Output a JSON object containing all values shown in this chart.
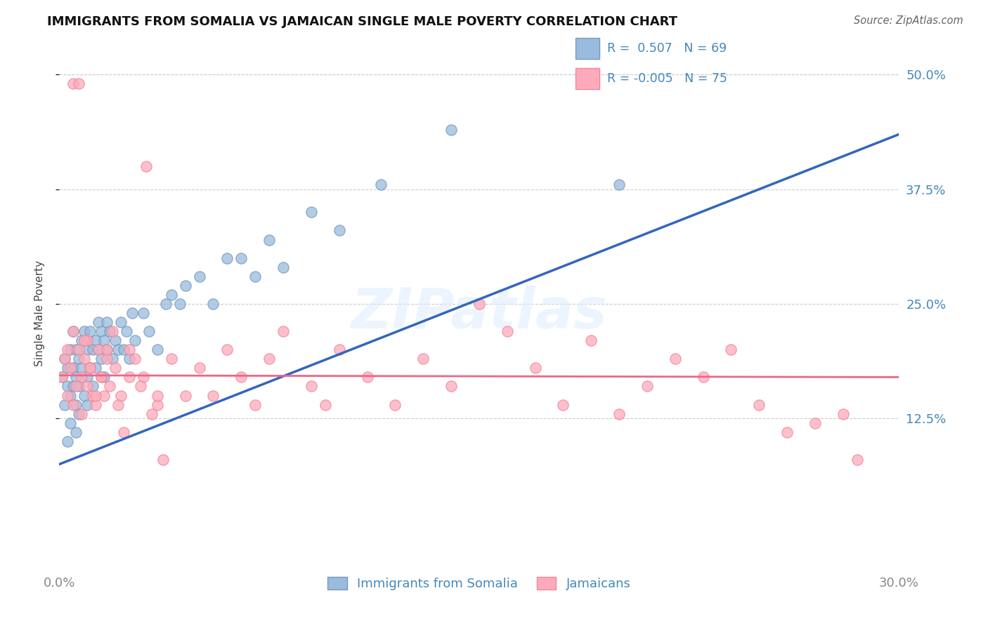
{
  "title": "IMMIGRANTS FROM SOMALIA VS JAMAICAN SINGLE MALE POVERTY CORRELATION CHART",
  "source": "Source: ZipAtlas.com",
  "ylabel": "Single Male Poverty",
  "xlim": [
    0.0,
    0.3
  ],
  "ylim": [
    -0.04,
    0.52
  ],
  "plot_ylim": [
    -0.04,
    0.52
  ],
  "xtick_positions": [
    0.0,
    0.3
  ],
  "xtick_labels": [
    "0.0%",
    "30.0%"
  ],
  "ytick_values": [
    0.125,
    0.25,
    0.375,
    0.5
  ],
  "ytick_labels": [
    "12.5%",
    "25.0%",
    "37.5%",
    "50.0%"
  ],
  "blue_color": "#99BBDD",
  "blue_edge": "#7799BB",
  "pink_color": "#FFAABB",
  "pink_edge": "#EE8899",
  "trend_blue": "#3366BB",
  "trend_pink": "#EE6688",
  "legend_R_blue": "0.507",
  "legend_N_blue": "69",
  "legend_R_pink": "-0.005",
  "legend_N_pink": "75",
  "legend_label_blue": "Immigrants from Somalia",
  "legend_label_pink": "Jamaicans",
  "axis_label_color": "#4488BB",
  "watermark": "ZIPatlas",
  "blue_trend_x0": 0.0,
  "blue_trend_y0": 0.075,
  "blue_trend_x1": 0.3,
  "blue_trend_y1": 0.435,
  "pink_trend_x0": 0.0,
  "pink_trend_y0": 0.172,
  "pink_trend_x1": 0.3,
  "pink_trend_y1": 0.17,
  "blue_scatter_x": [
    0.001,
    0.002,
    0.002,
    0.003,
    0.003,
    0.003,
    0.004,
    0.004,
    0.004,
    0.005,
    0.005,
    0.005,
    0.006,
    0.006,
    0.006,
    0.006,
    0.007,
    0.007,
    0.007,
    0.008,
    0.008,
    0.009,
    0.009,
    0.01,
    0.01,
    0.01,
    0.011,
    0.011,
    0.012,
    0.012,
    0.013,
    0.013,
    0.014,
    0.014,
    0.015,
    0.015,
    0.016,
    0.016,
    0.017,
    0.017,
    0.018,
    0.019,
    0.02,
    0.021,
    0.022,
    0.023,
    0.024,
    0.025,
    0.026,
    0.027,
    0.03,
    0.032,
    0.035,
    0.038,
    0.04,
    0.043,
    0.045,
    0.05,
    0.055,
    0.06,
    0.065,
    0.07,
    0.075,
    0.08,
    0.09,
    0.1,
    0.115,
    0.14,
    0.2
  ],
  "blue_scatter_y": [
    0.17,
    0.19,
    0.14,
    0.16,
    0.18,
    0.1,
    0.2,
    0.15,
    0.12,
    0.18,
    0.16,
    0.22,
    0.2,
    0.17,
    0.14,
    0.11,
    0.19,
    0.16,
    0.13,
    0.21,
    0.18,
    0.15,
    0.22,
    0.2,
    0.17,
    0.14,
    0.22,
    0.18,
    0.2,
    0.16,
    0.21,
    0.18,
    0.2,
    0.23,
    0.22,
    0.19,
    0.17,
    0.21,
    0.2,
    0.23,
    0.22,
    0.19,
    0.21,
    0.2,
    0.23,
    0.2,
    0.22,
    0.19,
    0.24,
    0.21,
    0.24,
    0.22,
    0.2,
    0.25,
    0.26,
    0.25,
    0.27,
    0.28,
    0.25,
    0.3,
    0.3,
    0.28,
    0.32,
    0.29,
    0.35,
    0.33,
    0.38,
    0.44,
    0.38
  ],
  "pink_scatter_x": [
    0.001,
    0.002,
    0.003,
    0.003,
    0.004,
    0.005,
    0.005,
    0.006,
    0.007,
    0.008,
    0.008,
    0.009,
    0.01,
    0.01,
    0.011,
    0.012,
    0.013,
    0.014,
    0.015,
    0.016,
    0.017,
    0.018,
    0.02,
    0.022,
    0.025,
    0.03,
    0.035,
    0.04,
    0.045,
    0.05,
    0.055,
    0.06,
    0.065,
    0.07,
    0.075,
    0.08,
    0.09,
    0.095,
    0.1,
    0.11,
    0.12,
    0.13,
    0.14,
    0.15,
    0.16,
    0.17,
    0.18,
    0.19,
    0.2,
    0.21,
    0.22,
    0.23,
    0.24,
    0.25,
    0.26,
    0.27,
    0.28,
    0.005,
    0.007,
    0.009,
    0.011,
    0.013,
    0.015,
    0.017,
    0.019,
    0.021,
    0.023,
    0.025,
    0.027,
    0.029,
    0.031,
    0.033,
    0.035,
    0.037,
    0.285
  ],
  "pink_scatter_y": [
    0.17,
    0.19,
    0.15,
    0.2,
    0.18,
    0.14,
    0.22,
    0.16,
    0.2,
    0.17,
    0.13,
    0.19,
    0.16,
    0.21,
    0.18,
    0.15,
    0.14,
    0.2,
    0.17,
    0.15,
    0.19,
    0.16,
    0.18,
    0.15,
    0.2,
    0.17,
    0.14,
    0.19,
    0.15,
    0.18,
    0.15,
    0.2,
    0.17,
    0.14,
    0.19,
    0.22,
    0.16,
    0.14,
    0.2,
    0.17,
    0.14,
    0.19,
    0.16,
    0.25,
    0.22,
    0.18,
    0.14,
    0.21,
    0.13,
    0.16,
    0.19,
    0.17,
    0.2,
    0.14,
    0.11,
    0.12,
    0.13,
    0.49,
    0.49,
    0.21,
    0.18,
    0.15,
    0.17,
    0.2,
    0.22,
    0.14,
    0.11,
    0.17,
    0.19,
    0.16,
    0.4,
    0.13,
    0.15,
    0.08,
    0.08
  ]
}
